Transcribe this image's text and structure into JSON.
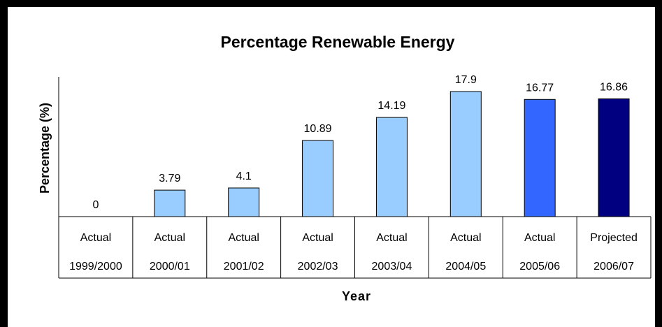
{
  "chart_data": {
    "type": "bar",
    "title": "Percentage Renewable Energy",
    "xlabel": "Year",
    "ylabel": "Percentage (%)",
    "categories": [
      [
        "Actual",
        "1999/2000"
      ],
      [
        "Actual",
        "2000/01"
      ],
      [
        "Actual",
        "2001/02"
      ],
      [
        "Actual",
        "2002/03"
      ],
      [
        "Actual",
        "2003/04"
      ],
      [
        "Actual",
        "2004/05"
      ],
      [
        "Actual",
        "2005/06"
      ],
      [
        "Projected",
        "2006/07"
      ]
    ],
    "values": [
      0,
      3.79,
      4.1,
      10.89,
      14.19,
      17.9,
      16.77,
      16.86
    ],
    "data_labels": [
      "0",
      "3.79",
      "4.1",
      "10.89",
      "14.19",
      "17.9",
      "16.77",
      "16.86"
    ],
    "colors": [
      "#99ccff",
      "#99ccff",
      "#99ccff",
      "#99ccff",
      "#99ccff",
      "#99ccff",
      "#3366ff",
      "#000080"
    ],
    "ylim": [
      0,
      20
    ],
    "grid": false,
    "legend": "none"
  }
}
